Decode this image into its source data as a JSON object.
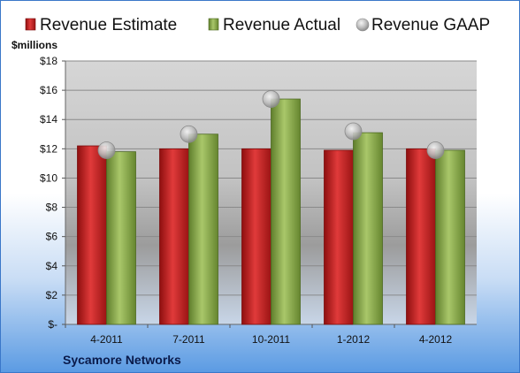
{
  "chart_data": {
    "type": "bar",
    "title": "",
    "ylabel": "$millions",
    "ylim": [
      0,
      18
    ],
    "yticks": [
      "$-",
      "$2",
      "$4",
      "$6",
      "$8",
      "$10",
      "$12",
      "$14",
      "$16",
      "$18"
    ],
    "categories": [
      "4-2011",
      "7-2011",
      "10-2011",
      "1-2012",
      "4-2012"
    ],
    "series": [
      {
        "name": "Revenue Estimate",
        "kind": "bar",
        "color": "#cc1f1f",
        "values": [
          12.2,
          12.0,
          12.0,
          11.9,
          12.0
        ]
      },
      {
        "name": "Revenue Actual",
        "kind": "bar",
        "color": "#8fb050",
        "values": [
          11.8,
          13.0,
          15.4,
          13.1,
          11.9
        ]
      },
      {
        "name": "Revenue GAAP",
        "kind": "marker",
        "color": "#b8b8b8",
        "values": [
          11.9,
          13.0,
          15.4,
          13.2,
          11.9
        ]
      }
    ],
    "legend_position": "top",
    "grid": true,
    "footer": "Sycamore Networks"
  }
}
